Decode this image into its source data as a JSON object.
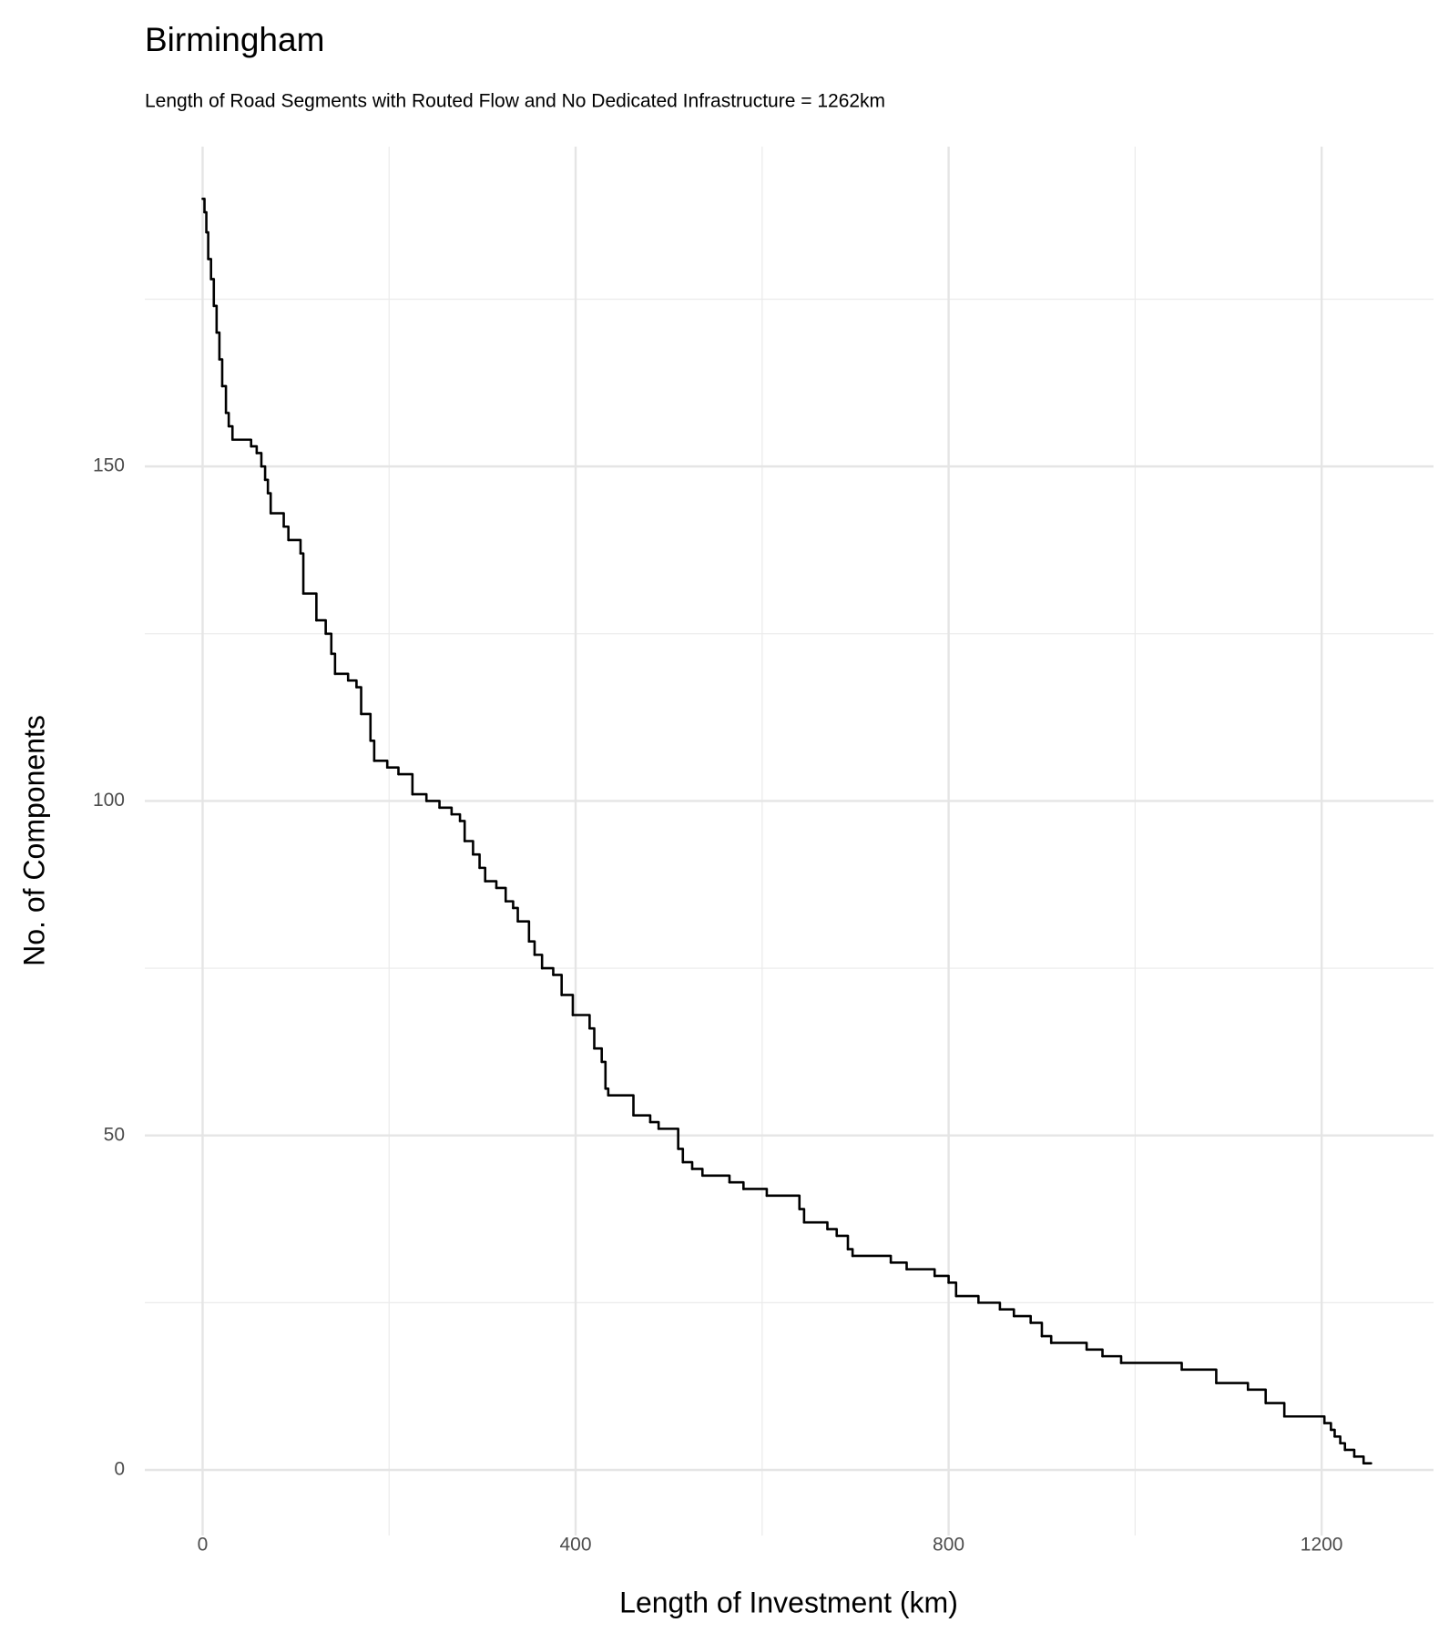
{
  "chart_data": {
    "type": "step",
    "title": "Birmingham",
    "subtitle": "Length of Road Segments with Routed Flow and No Dedicated Infrastructure = 1262km",
    "x_label": "Length of Investment (km)",
    "y_label": "No. of Components",
    "x": [
      0,
      2,
      4,
      6,
      9,
      12,
      15,
      18,
      21,
      25,
      28,
      32,
      52,
      58,
      63,
      67,
      70,
      73,
      87,
      92,
      105,
      108,
      122,
      132,
      138,
      142,
      156,
      165,
      170,
      180,
      184,
      198,
      210,
      225,
      240,
      254,
      267,
      276,
      281,
      290,
      297,
      303,
      315,
      325,
      333,
      338,
      350,
      356,
      364,
      376,
      385,
      397,
      415,
      420,
      428,
      432,
      435,
      462,
      480,
      489,
      510,
      515,
      525,
      536,
      565,
      580,
      605,
      640,
      645,
      670,
      680,
      692,
      697,
      738,
      755,
      785,
      800,
      808,
      832,
      855,
      870,
      888,
      900,
      910,
      948,
      965,
      985,
      1050,
      1087,
      1121,
      1140,
      1160,
      1203,
      1210,
      1214,
      1220,
      1225,
      1235,
      1245,
      1253
    ],
    "values": [
      190,
      188,
      185,
      181,
      178,
      174,
      170,
      166,
      162,
      158,
      156,
      154,
      153,
      152,
      150,
      148,
      146,
      143,
      141,
      139,
      137,
      131,
      127,
      125,
      122,
      119,
      118,
      117,
      113,
      109,
      106,
      105,
      104,
      101,
      100,
      99,
      98,
      97,
      94,
      92,
      90,
      88,
      87,
      85,
      84,
      82,
      79,
      77,
      75,
      74,
      71,
      68,
      66,
      63,
      61,
      57,
      56,
      53,
      52,
      51,
      48,
      46,
      45,
      44,
      43,
      42,
      41,
      39,
      37,
      36,
      35,
      33,
      32,
      31,
      30,
      29,
      28,
      26,
      25,
      24,
      23,
      22,
      20,
      19,
      18,
      17,
      16,
      15,
      13,
      12,
      10,
      8,
      7,
      6,
      5,
      4,
      3,
      2,
      1,
      1
    ],
    "color": "#000000",
    "xlim": [
      -62,
      1320
    ],
    "ylim": [
      -9.8,
      197.8
    ],
    "xticks": [
      0,
      400,
      800,
      1200
    ],
    "yticks": [
      0,
      50,
      100,
      150
    ],
    "grid": true
  }
}
